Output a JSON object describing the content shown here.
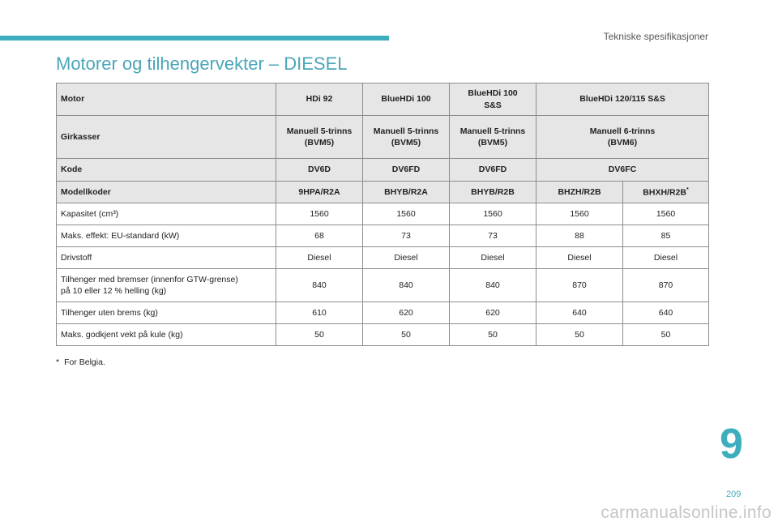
{
  "header": {
    "section": "Tekniske spesifikasjoner"
  },
  "title": "Motorer og tilhengervekter – DIESEL",
  "table": {
    "engine_row": {
      "label": "Motor",
      "values": [
        "HDi 92",
        "BlueHDi 100",
        "BlueHDi 100 S&S",
        "BlueHDi 120/115 S&S"
      ]
    },
    "gearbox_row": {
      "label": "Girkasser",
      "values": [
        {
          "line1": "Manuell 5-trinns",
          "line2": "(BVM5)"
        },
        {
          "line1": "Manuell 5-trinns",
          "line2": "(BVM5)"
        },
        {
          "line1": "Manuell 5-trinns",
          "line2": "(BVM5)"
        },
        {
          "line1": "Manuell 6-trinns",
          "line2": "(BVM6)"
        }
      ]
    },
    "code_row": {
      "label": "Kode",
      "values": [
        "DV6D",
        "DV6FD",
        "DV6FD",
        "DV6FC"
      ]
    },
    "model_row": {
      "label": "Modellkoder",
      "values": [
        "9HPA/R2A",
        "BHYB/R2A",
        "BHYB/R2B",
        "BHZH/R2B",
        "BHXH/R2B"
      ],
      "last_marker": "*"
    },
    "data_rows": [
      {
        "label": "Kapasitet (cm³)",
        "values": [
          "1560",
          "1560",
          "1560",
          "1560",
          "1560"
        ]
      },
      {
        "label": "Maks. effekt: EU-standard (kW)",
        "values": [
          "68",
          "73",
          "73",
          "88",
          "85"
        ]
      },
      {
        "label": "Drivstoff",
        "values": [
          "Diesel",
          "Diesel",
          "Diesel",
          "Diesel",
          "Diesel"
        ]
      },
      {
        "label_line1": "Tilhenger med bremser (innenfor GTW-grense)",
        "label_line2": "på 10 eller 12 % helling (kg)",
        "values": [
          "840",
          "840",
          "840",
          "870",
          "870"
        ]
      },
      {
        "label": "Tilhenger uten brems (kg)",
        "values": [
          "610",
          "620",
          "620",
          "640",
          "640"
        ]
      },
      {
        "label": "Maks. godkjent vekt på kule (kg)",
        "values": [
          "50",
          "50",
          "50",
          "50",
          "50"
        ]
      }
    ]
  },
  "footnote": {
    "marker": "*",
    "text": "For Belgia."
  },
  "chapter": "9",
  "page_number": "209",
  "watermark": "carmanualsonline.info",
  "colors": {
    "accent": "#3eaebe",
    "title": "#4aa6b8",
    "header_bg": "#e6e6e6",
    "border": "#8d8d8d"
  }
}
